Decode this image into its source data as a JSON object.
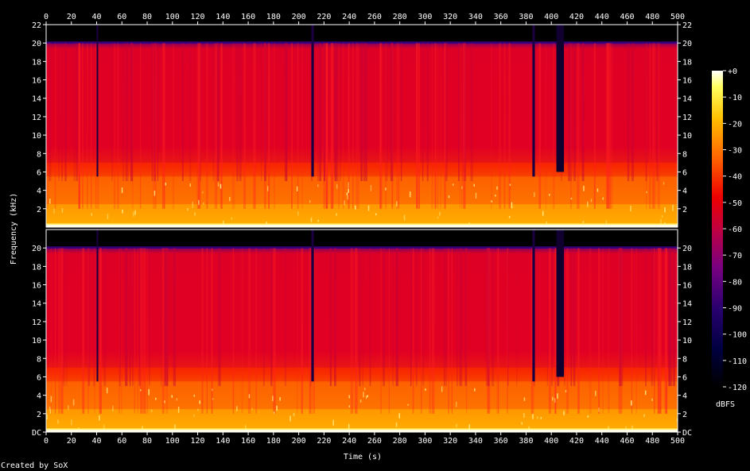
{
  "chart_data": {
    "type": "heatmap",
    "title": "",
    "xlabel": "Time (s)",
    "ylabel": "Frequency (kHz)",
    "xlim": [
      0,
      500
    ],
    "ylim": [
      0,
      22
    ],
    "x_ticks": [
      "0",
      "20",
      "40",
      "60",
      "80",
      "100",
      "120",
      "140",
      "160",
      "180",
      "200",
      "220",
      "240",
      "260",
      "280",
      "300",
      "320",
      "340",
      "360",
      "380",
      "400",
      "420",
      "440",
      "460",
      "480",
      "500"
    ],
    "y_ticks_top": [
      "22",
      "20",
      "18",
      "16",
      "14",
      "12",
      "10",
      "8",
      "6",
      "4",
      "2"
    ],
    "y_ticks_bottom": [
      "20",
      "18",
      "16",
      "14",
      "12",
      "10",
      "8",
      "6",
      "4",
      "2",
      "DC"
    ],
    "channels": 2,
    "energy_cutoff_khz": 20,
    "colorbar": {
      "label": "dBFS",
      "ticks": [
        "+0",
        "-10",
        "-20",
        "-30",
        "-40",
        "-50",
        "-60",
        "-70",
        "-80",
        "-90",
        "-100",
        "-110",
        "-120"
      ],
      "range": [
        -120,
        0
      ]
    },
    "band_levels": [
      {
        "from_khz": 0,
        "to_khz": 0.4,
        "dbfs": -5
      },
      {
        "from_khz": 0.4,
        "to_khz": 2.5,
        "dbfs": -28
      },
      {
        "from_khz": 2.5,
        "to_khz": 5.5,
        "dbfs": -38
      },
      {
        "from_khz": 5.5,
        "to_khz": 7,
        "dbfs": -46
      },
      {
        "from_khz": 7,
        "to_khz": 20,
        "dbfs": -55
      }
    ],
    "quiet_segments_s": [
      [
        40,
        41
      ],
      [
        210,
        212
      ],
      [
        385,
        387
      ],
      [
        404,
        410
      ]
    ],
    "footer": "Created by SoX"
  }
}
